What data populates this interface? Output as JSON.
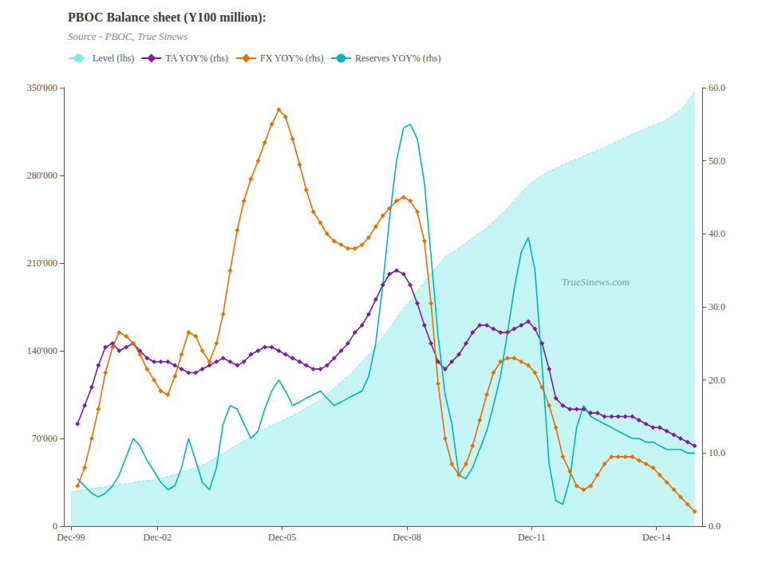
{
  "chart_data": {
    "type": "line",
    "title": "PBOC Balance sheet (Y100 million):",
    "subtitle": "Source - PBOC, True Sinews",
    "annotations": [
      "TrueSinews.com"
    ],
    "grid": false,
    "legend": "upper left",
    "xlim": [
      1999.75,
      2015.1
    ],
    "xticks": [
      {
        "value": 1999.92,
        "label": "Dec-99"
      },
      {
        "value": 2002.0,
        "label": "Dec-02"
      },
      {
        "value": 2005.0,
        "label": "Dec-05"
      },
      {
        "value": 2008.0,
        "label": "Dec-08"
      },
      {
        "value": 2011.0,
        "label": "Dec-11"
      },
      {
        "value": 2014.0,
        "label": "Dec-14"
      }
    ],
    "ylim": [
      0,
      350000
    ],
    "yticks": [
      0,
      {
        "value": 70000,
        "label": "70'000"
      },
      {
        "value": 140000,
        "label": "140'000"
      },
      {
        "value": 210000,
        "label": "210'000"
      },
      {
        "value": 280000,
        "label": "280'000"
      },
      {
        "value": 350000,
        "label": "350'000"
      }
    ],
    "y2lim": [
      0.0,
      60.0
    ],
    "y2ticks": [
      {
        "value": 0.0,
        "label": "0.0"
      },
      {
        "value": 10.0,
        "label": "10.0"
      },
      {
        "value": 20.0,
        "label": "20.0"
      },
      {
        "value": 30.0,
        "label": "30.0"
      },
      {
        "value": 40.0,
        "label": "40.0"
      },
      {
        "value": 50.0,
        "label": "50.0"
      },
      {
        "value": 60.0,
        "label": "60.0"
      }
    ],
    "series": [
      {
        "name": "Level (lhs)",
        "type": "area",
        "color": "#80e8e8",
        "line_style": "dashed",
        "x": [
          1999.92,
          2000.17,
          2000.42,
          2000.67,
          2000.92,
          2001.17,
          2001.42,
          2001.67,
          2001.92,
          2002.17,
          2002.42,
          2002.67,
          2002.92,
          2003.17,
          2003.42,
          2003.67,
          2003.92,
          2004.17,
          2004.42,
          2004.67,
          2004.92,
          2005.17,
          2005.42,
          2005.67,
          2005.92,
          2006.17,
          2006.42,
          2006.67,
          2006.92,
          2007.17,
          2007.42,
          2007.67,
          2007.92,
          2008.17,
          2008.42,
          2008.67,
          2008.92,
          2009.17,
          2009.42,
          2009.67,
          2009.92,
          2010.17,
          2010.42,
          2010.67,
          2010.92,
          2011.17,
          2011.42,
          2011.67,
          2011.92,
          2012.17,
          2012.42,
          2012.67,
          2012.92,
          2013.17,
          2013.42,
          2013.67,
          2013.92,
          2014.17,
          2014.42,
          2014.67,
          2014.92
        ],
        "values": [
          27000,
          28500,
          30000,
          31000,
          32500,
          33500,
          35000,
          36000,
          37000,
          39000,
          41000,
          44000,
          47000,
          50000,
          55000,
          60000,
          65000,
          70000,
          75000,
          79000,
          83000,
          87000,
          91000,
          96000,
          101000,
          108000,
          115000,
          122000,
          131000,
          140000,
          151000,
          162000,
          174000,
          184000,
          195000,
          205000,
          215000,
          220000,
          226000,
          232000,
          238000,
          246000,
          254000,
          263000,
          272000,
          278000,
          283000,
          287000,
          291000,
          294000,
          298000,
          301000,
          305000,
          309000,
          313000,
          316000,
          320000,
          323000,
          328000,
          335000,
          347000
        ]
      },
      {
        "name": "TA YOY% (rhs)",
        "type": "line",
        "axis": "y2",
        "color": "#7b1fa2",
        "marker": "diamond",
        "x": [
          2000.08,
          2000.25,
          2000.42,
          2000.58,
          2000.75,
          2000.92,
          2001.08,
          2001.25,
          2001.42,
          2001.58,
          2001.75,
          2001.92,
          2002.08,
          2002.25,
          2002.42,
          2002.58,
          2002.75,
          2002.92,
          2003.08,
          2003.25,
          2003.42,
          2003.58,
          2003.75,
          2003.92,
          2004.08,
          2004.25,
          2004.42,
          2004.58,
          2004.75,
          2004.92,
          2005.08,
          2005.25,
          2005.42,
          2005.58,
          2005.75,
          2005.92,
          2006.08,
          2006.25,
          2006.42,
          2006.58,
          2006.75,
          2006.92,
          2007.08,
          2007.25,
          2007.42,
          2007.58,
          2007.75,
          2007.92,
          2008.08,
          2008.25,
          2008.42,
          2008.58,
          2008.75,
          2008.92,
          2009.08,
          2009.25,
          2009.42,
          2009.58,
          2009.75,
          2009.92,
          2010.08,
          2010.25,
          2010.42,
          2010.58,
          2010.75,
          2010.92,
          2011.08,
          2011.25,
          2011.42,
          2011.58,
          2011.75,
          2011.92,
          2012.08,
          2012.25,
          2012.42,
          2012.58,
          2012.75,
          2012.92,
          2013.08,
          2013.25,
          2013.42,
          2013.58,
          2013.75,
          2013.92,
          2014.08,
          2014.25,
          2014.42,
          2014.58,
          2014.75,
          2014.92
        ],
        "values": [
          14.0,
          16.5,
          19.0,
          22.0,
          24.5,
          25.0,
          24.0,
          24.5,
          25.0,
          24.0,
          23.0,
          22.5,
          22.5,
          22.5,
          22.0,
          21.5,
          21.0,
          21.0,
          21.5,
          22.0,
          22.5,
          23.0,
          22.5,
          22.0,
          22.5,
          23.5,
          24.0,
          24.5,
          24.5,
          24.0,
          23.5,
          23.0,
          22.5,
          22.0,
          21.5,
          21.5,
          22.0,
          23.0,
          24.0,
          25.0,
          26.5,
          27.5,
          29.0,
          31.0,
          33.0,
          34.5,
          35.0,
          34.5,
          33.0,
          30.5,
          27.5,
          25.0,
          22.5,
          21.5,
          22.5,
          23.5,
          25.0,
          26.5,
          27.5,
          27.5,
          27.0,
          26.5,
          26.5,
          27.0,
          27.5,
          28.0,
          27.0,
          25.0,
          21.5,
          17.5,
          16.5,
          16.0,
          16.0,
          16.0,
          15.5,
          15.5,
          15.0,
          15.0,
          15.0,
          15.0,
          15.0,
          14.5,
          14.0,
          13.5,
          13.5,
          13.0,
          12.5,
          12.0,
          11.5,
          11.0
        ]
      },
      {
        "name": "FX YOY% (rhs)",
        "type": "line",
        "axis": "y2",
        "color": "#e87000",
        "marker": "diamond",
        "x": [
          2000.08,
          2000.25,
          2000.42,
          2000.58,
          2000.75,
          2000.92,
          2001.08,
          2001.25,
          2001.42,
          2001.58,
          2001.75,
          2001.92,
          2002.08,
          2002.25,
          2002.42,
          2002.58,
          2002.75,
          2002.92,
          2003.08,
          2003.25,
          2003.42,
          2003.58,
          2003.75,
          2003.92,
          2004.08,
          2004.25,
          2004.42,
          2004.58,
          2004.75,
          2004.92,
          2005.08,
          2005.25,
          2005.42,
          2005.58,
          2005.75,
          2005.92,
          2006.08,
          2006.25,
          2006.42,
          2006.58,
          2006.75,
          2006.92,
          2007.08,
          2007.25,
          2007.42,
          2007.58,
          2007.75,
          2007.92,
          2008.08,
          2008.25,
          2008.42,
          2008.58,
          2008.75,
          2008.92,
          2009.08,
          2009.25,
          2009.42,
          2009.58,
          2009.75,
          2009.92,
          2010.08,
          2010.25,
          2010.42,
          2010.58,
          2010.75,
          2010.92,
          2011.08,
          2011.25,
          2011.42,
          2011.58,
          2011.75,
          2011.92,
          2012.08,
          2012.25,
          2012.42,
          2012.58,
          2012.75,
          2012.92,
          2013.08,
          2013.25,
          2013.42,
          2013.58,
          2013.75,
          2013.92,
          2014.08,
          2014.25,
          2014.42,
          2014.58,
          2014.75,
          2014.92
        ],
        "values": [
          5.5,
          8.0,
          12.0,
          16.0,
          21.0,
          24.5,
          26.5,
          26.0,
          25.0,
          23.5,
          21.5,
          20.0,
          18.5,
          18.0,
          20.5,
          23.5,
          26.5,
          26.0,
          24.0,
          22.5,
          25.0,
          29.0,
          35.0,
          40.5,
          44.5,
          47.5,
          50.0,
          52.5,
          55.0,
          57.0,
          56.0,
          53.0,
          49.5,
          46.0,
          43.0,
          41.5,
          40.0,
          39.0,
          38.5,
          38.0,
          38.0,
          38.5,
          39.5,
          41.0,
          42.5,
          43.5,
          44.5,
          45.0,
          44.5,
          43.0,
          39.0,
          30.5,
          19.5,
          12.0,
          8.5,
          7.0,
          8.5,
          11.0,
          14.5,
          18.0,
          21.0,
          22.5,
          23.0,
          23.0,
          22.5,
          22.0,
          21.0,
          19.0,
          16.5,
          13.5,
          9.5,
          7.5,
          5.5,
          5.0,
          5.5,
          7.0,
          8.5,
          9.5,
          9.5,
          9.5,
          9.5,
          9.0,
          8.5,
          8.0,
          7.0,
          6.0,
          5.0,
          4.0,
          3.0,
          2.0
        ]
      },
      {
        "name": "Reserves YOY% (rhs)",
        "type": "line",
        "axis": "y2",
        "color": "#00b5b8",
        "x": [
          2000.08,
          2000.25,
          2000.42,
          2000.58,
          2000.75,
          2000.92,
          2001.08,
          2001.25,
          2001.42,
          2001.58,
          2001.75,
          2001.92,
          2002.08,
          2002.25,
          2002.42,
          2002.58,
          2002.75,
          2002.92,
          2003.08,
          2003.25,
          2003.42,
          2003.58,
          2003.75,
          2003.92,
          2004.08,
          2004.25,
          2004.42,
          2004.58,
          2004.75,
          2004.92,
          2005.08,
          2005.25,
          2005.42,
          2005.58,
          2005.75,
          2005.92,
          2006.08,
          2006.25,
          2006.42,
          2006.58,
          2006.75,
          2006.92,
          2007.08,
          2007.25,
          2007.42,
          2007.58,
          2007.75,
          2007.92,
          2008.08,
          2008.25,
          2008.42,
          2008.58,
          2008.75,
          2008.92,
          2009.08,
          2009.25,
          2009.42,
          2009.58,
          2009.75,
          2009.92,
          2010.08,
          2010.25,
          2010.42,
          2010.58,
          2010.75,
          2010.92,
          2011.08,
          2011.25,
          2011.42,
          2011.58,
          2011.75,
          2011.92,
          2012.08,
          2012.25,
          2012.42,
          2012.58,
          2012.75,
          2012.92,
          2013.08,
          2013.25,
          2013.42,
          2013.58,
          2013.75,
          2013.92,
          2014.08,
          2014.25,
          2014.42,
          2014.58,
          2014.75,
          2014.92
        ],
        "values": [
          6.5,
          5.5,
          4.5,
          4.0,
          4.5,
          5.5,
          7.0,
          9.5,
          12.0,
          11.0,
          9.0,
          7.5,
          6.0,
          5.0,
          5.5,
          8.0,
          12.0,
          9.0,
          6.0,
          5.0,
          8.0,
          14.0,
          16.5,
          16.0,
          14.0,
          12.0,
          13.0,
          16.0,
          18.5,
          20.0,
          18.5,
          16.5,
          17.0,
          17.5,
          18.0,
          18.5,
          17.5,
          16.5,
          17.0,
          17.5,
          18.0,
          18.5,
          20.5,
          25.0,
          33.0,
          42.0,
          50.0,
          54.5,
          55.0,
          53.0,
          47.0,
          37.0,
          26.0,
          18.0,
          14.0,
          7.0,
          6.5,
          8.0,
          10.5,
          13.0,
          16.5,
          20.5,
          26.5,
          32.5,
          37.5,
          39.5,
          35.0,
          22.0,
          8.5,
          3.5,
          3.0,
          6.5,
          13.5,
          16.5,
          15.0,
          14.5,
          14.0,
          13.5,
          13.0,
          12.5,
          12.0,
          12.0,
          11.5,
          11.5,
          11.0,
          10.5,
          10.5,
          10.5,
          10.0,
          10.0
        ]
      }
    ]
  }
}
